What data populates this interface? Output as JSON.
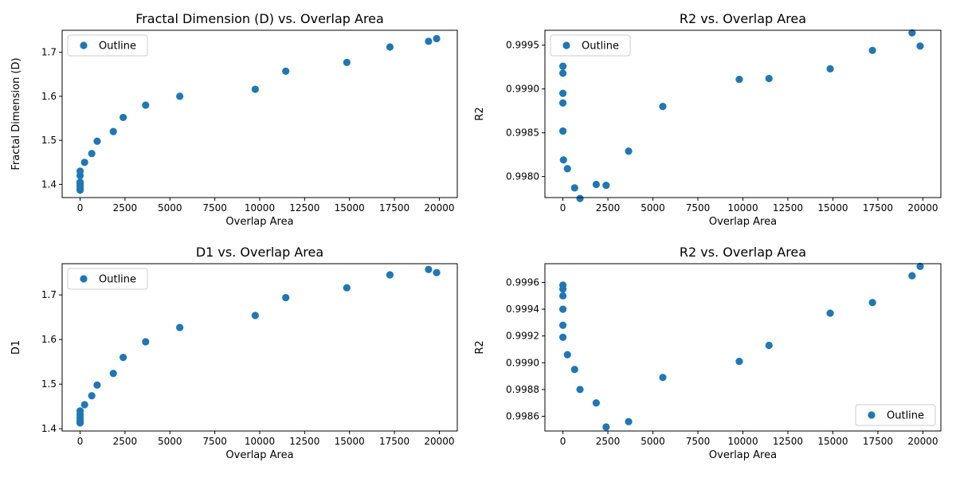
{
  "chart_data": [
    {
      "type": "scatter",
      "title": "Fractal Dimension (D) vs. Overlap Area",
      "xlabel": "Overlap Area",
      "ylabel": "Fractal Dimension (D)",
      "xlim": [
        -1000,
        21000
      ],
      "ylim": [
        1.37,
        1.75
      ],
      "xticks": [
        0,
        2500,
        5000,
        7500,
        10000,
        12500,
        15000,
        17500,
        20000
      ],
      "yticks": [
        1.4,
        1.5,
        1.6,
        1.7
      ],
      "ytick_labels": [
        "1.4",
        "1.5",
        "1.6",
        "1.7"
      ],
      "legend_position": "upper-left",
      "series": [
        {
          "name": "Outline",
          "color": "#1f77b4",
          "x": [
            0,
            0,
            0,
            0,
            0,
            0,
            0,
            250,
            650,
            950,
            1850,
            2400,
            3650,
            5550,
            9750,
            11450,
            14850,
            17250,
            19400,
            19850
          ],
          "y": [
            1.387,
            1.39,
            1.396,
            1.402,
            1.405,
            1.42,
            1.43,
            1.45,
            1.47,
            1.498,
            1.52,
            1.552,
            1.58,
            1.6,
            1.616,
            1.657,
            1.677,
            1.712,
            1.725,
            1.731
          ]
        }
      ]
    },
    {
      "type": "scatter",
      "title": "R2 vs. Overlap Area",
      "xlabel": "Overlap Area",
      "ylabel": "R2",
      "xlim": [
        -1000,
        21000
      ],
      "ylim": [
        0.99776,
        0.99967
      ],
      "xticks": [
        0,
        2500,
        5000,
        7500,
        10000,
        12500,
        15000,
        17500,
        20000
      ],
      "yticks": [
        0.998,
        0.9985,
        0.999,
        0.9995
      ],
      "ytick_labels": [
        "0.9980",
        "0.9985",
        "0.9990",
        "0.9995"
      ],
      "legend_position": "upper-left",
      "series": [
        {
          "name": "Outline",
          "color": "#1f77b4",
          "x": [
            0,
            0,
            0,
            0,
            0,
            30,
            250,
            650,
            950,
            1850,
            2400,
            3650,
            5550,
            9800,
            11450,
            14850,
            17200,
            19400,
            19850
          ],
          "y": [
            0.99926,
            0.99918,
            0.99895,
            0.99884,
            0.99852,
            0.99819,
            0.99809,
            0.99787,
            0.99775,
            0.99791,
            0.9979,
            0.99829,
            0.9988,
            0.99911,
            0.99912,
            0.99923,
            0.99944,
            0.99964,
            0.99949
          ]
        }
      ]
    },
    {
      "type": "scatter",
      "title": "D1 vs. Overlap Area",
      "xlabel": "Overlap Area",
      "ylabel": "D1",
      "xlim": [
        -1000,
        21000
      ],
      "ylim": [
        1.395,
        1.77
      ],
      "xticks": [
        0,
        2500,
        5000,
        7500,
        10000,
        12500,
        15000,
        17500,
        20000
      ],
      "yticks": [
        1.4,
        1.5,
        1.6,
        1.7
      ],
      "ytick_labels": [
        "1.4",
        "1.5",
        "1.6",
        "1.7"
      ],
      "legend_position": "upper-left",
      "series": [
        {
          "name": "Outline",
          "color": "#1f77b4",
          "x": [
            0,
            0,
            0,
            0,
            0,
            250,
            650,
            950,
            1850,
            2400,
            3650,
            5550,
            9750,
            11450,
            14850,
            17250,
            19400,
            19850
          ],
          "y": [
            1.413,
            1.418,
            1.425,
            1.432,
            1.44,
            1.454,
            1.474,
            1.498,
            1.524,
            1.56,
            1.595,
            1.627,
            1.654,
            1.694,
            1.716,
            1.745,
            1.757,
            1.75
          ]
        }
      ]
    },
    {
      "type": "scatter",
      "title": "R2 vs. Overlap Area",
      "xlabel": "Overlap Area",
      "ylabel": "R2",
      "xlim": [
        -1000,
        21000
      ],
      "ylim": [
        0.99849,
        0.99974
      ],
      "xticks": [
        0,
        2500,
        5000,
        7500,
        10000,
        12500,
        15000,
        17500,
        20000
      ],
      "yticks": [
        0.9986,
        0.9988,
        0.999,
        0.9992,
        0.9994,
        0.9996
      ],
      "ytick_labels": [
        "0.9986",
        "0.9988",
        "0.9990",
        "0.9992",
        "0.9994",
        "0.9996"
      ],
      "legend_position": "lower-right",
      "series": [
        {
          "name": "Outline",
          "color": "#1f77b4",
          "x": [
            0,
            0,
            0,
            0,
            0,
            0,
            250,
            650,
            950,
            1850,
            2400,
            3650,
            5550,
            9800,
            11450,
            14850,
            17200,
            19400,
            19850
          ],
          "y": [
            0.99958,
            0.99955,
            0.9995,
            0.9994,
            0.99928,
            0.99919,
            0.99906,
            0.99895,
            0.9988,
            0.9987,
            0.99852,
            0.99856,
            0.99889,
            0.99901,
            0.99913,
            0.99937,
            0.99945,
            0.99965,
            0.99972
          ]
        }
      ]
    }
  ]
}
